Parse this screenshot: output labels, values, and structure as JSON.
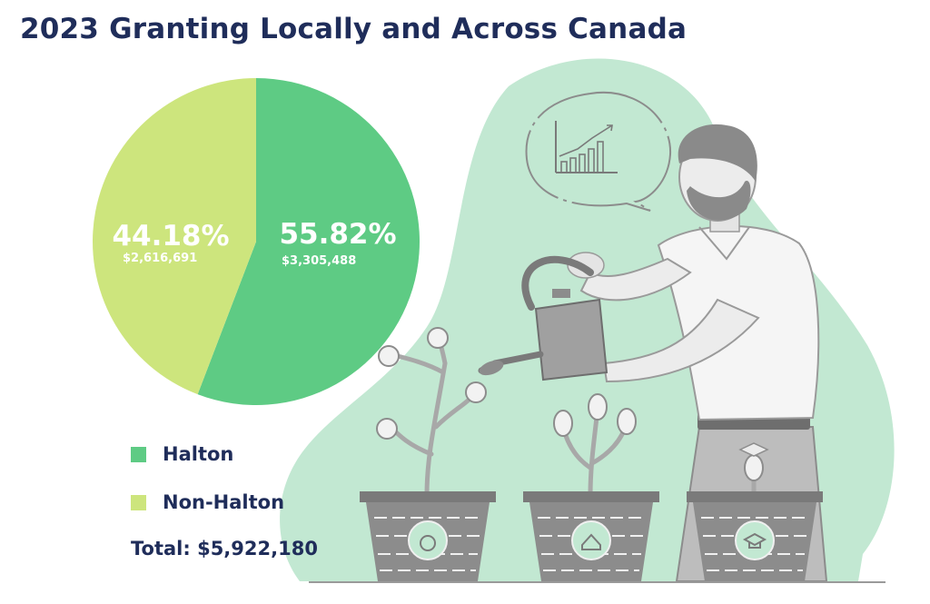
{
  "chart_data": {
    "type": "pie",
    "title": "2023 Granting Locally and Across Canada",
    "slices": [
      {
        "name": "Halton",
        "percent": 55.82,
        "percent_label": "55.82%",
        "amount": 3305488,
        "amount_label": "$3,305,488",
        "color": "#5ecb84"
      },
      {
        "name": "Non-Halton",
        "percent": 44.18,
        "percent_label": "44.18%",
        "amount": 2616691,
        "amount_label": "$2,616,691",
        "color": "#cde57d"
      }
    ],
    "legend": {
      "placement": "bottom-left"
    },
    "total_label": "Total: $5,922,180"
  },
  "colors": {
    "title": "#1f2d5a",
    "blob": "#c2e8d2",
    "plant": "#a8a8a8",
    "pot": "#8c8c8c"
  },
  "icons": [
    "chart-bubble-icon",
    "apple-icon",
    "house-icon",
    "graduation-cap-icon",
    "watering-can-icon"
  ]
}
